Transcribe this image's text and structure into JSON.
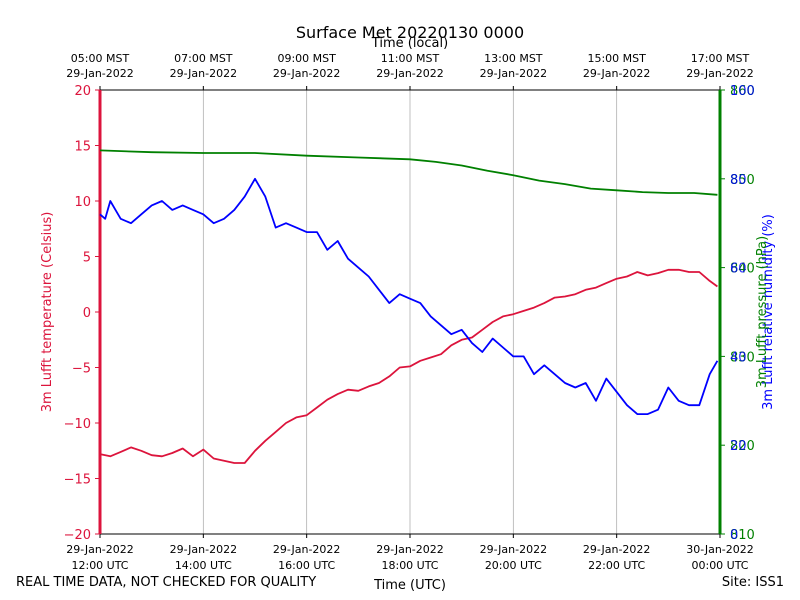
{
  "chart_data": {
    "type": "line",
    "title": "Surface Met 20220130 0000",
    "top_axis_label": "Time (local)",
    "xlabel": "Time (UTC)",
    "top_ticks": [
      {
        "line1": "05:00 MST",
        "line2": "29-Jan-2022"
      },
      {
        "line1": "07:00 MST",
        "line2": "29-Jan-2022"
      },
      {
        "line1": "09:00 MST",
        "line2": "29-Jan-2022"
      },
      {
        "line1": "11:00 MST",
        "line2": "29-Jan-2022"
      },
      {
        "line1": "13:00 MST",
        "line2": "29-Jan-2022"
      },
      {
        "line1": "15:00 MST",
        "line2": "29-Jan-2022"
      },
      {
        "line1": "17:00 MST",
        "line2": "29-Jan-2022"
      }
    ],
    "bottom_ticks": [
      {
        "line1": "29-Jan-2022",
        "line2": "12:00 UTC"
      },
      {
        "line1": "29-Jan-2022",
        "line2": "14:00 UTC"
      },
      {
        "line1": "29-Jan-2022",
        "line2": "16:00 UTC"
      },
      {
        "line1": "29-Jan-2022",
        "line2": "18:00 UTC"
      },
      {
        "line1": "29-Jan-2022",
        "line2": "20:00 UTC"
      },
      {
        "line1": "29-Jan-2022",
        "line2": "22:00 UTC"
      },
      {
        "line1": "30-Jan-2022",
        "line2": "00:00 UTC"
      }
    ],
    "xlim_hours": [
      12,
      24
    ],
    "tick_hours": [
      12,
      14,
      16,
      18,
      20,
      22,
      24
    ],
    "grid": true,
    "left_axis": {
      "label": "3m Lufft temperature (Celsius)",
      "color": "#dc143c",
      "ylim": [
        -20,
        20
      ],
      "ticks": [
        "−20",
        "−15",
        "−10",
        "−5",
        "0",
        "5",
        "10",
        "15",
        "20"
      ]
    },
    "right_axis_pressure": {
      "label": "3m Lufft pressure (hPa)",
      "color": "#008000",
      "ylim": [
        810,
        860
      ],
      "ticks": [
        "810",
        "820",
        "830",
        "840",
        "850",
        "860"
      ]
    },
    "right_axis_humidity": {
      "label": "3m Lufft relative humidity (%)",
      "color": "#0000ff",
      "ylim": [
        0,
        100
      ],
      "ticks": [
        "0",
        "20",
        "40",
        "60",
        "80",
        "100"
      ]
    },
    "series": [
      {
        "name": "3m Lufft temperature",
        "axis": "left",
        "color": "#dc143c",
        "x": [
          12.0,
          12.2,
          12.4,
          12.6,
          12.8,
          13.0,
          13.2,
          13.4,
          13.6,
          13.8,
          14.0,
          14.2,
          14.4,
          14.6,
          14.8,
          15.0,
          15.2,
          15.4,
          15.6,
          15.8,
          16.0,
          16.2,
          16.4,
          16.6,
          16.8,
          17.0,
          17.2,
          17.4,
          17.6,
          17.8,
          18.0,
          18.2,
          18.4,
          18.6,
          18.8,
          19.0,
          19.2,
          19.4,
          19.6,
          19.8,
          20.0,
          20.2,
          20.4,
          20.6,
          20.8,
          21.0,
          21.2,
          21.4,
          21.6,
          21.8,
          22.0,
          22.2,
          22.4,
          22.6,
          22.8,
          23.0,
          23.2,
          23.4,
          23.6,
          23.8,
          23.95
        ],
        "values": [
          -12.8,
          -13.0,
          -12.6,
          -12.2,
          -12.5,
          -12.9,
          -13.0,
          -12.7,
          -12.3,
          -13.0,
          -12.4,
          -13.2,
          -13.4,
          -13.6,
          -13.6,
          -12.5,
          -11.6,
          -10.8,
          -10.0,
          -9.5,
          -9.3,
          -8.6,
          -7.9,
          -7.4,
          -7.0,
          -7.1,
          -6.7,
          -6.4,
          -5.8,
          -5.0,
          -4.9,
          -4.4,
          -4.1,
          -3.8,
          -3.0,
          -2.5,
          -2.3,
          -1.6,
          -0.9,
          -0.4,
          -0.2,
          0.1,
          0.4,
          0.8,
          1.3,
          1.4,
          1.6,
          2.0,
          2.2,
          2.6,
          3.0,
          3.2,
          3.6,
          3.3,
          3.5,
          3.8,
          3.8,
          3.6,
          3.6,
          2.8,
          2.3
        ]
      },
      {
        "name": "3m Lufft relative humidity",
        "axis": "right_humidity",
        "color": "#0000ff",
        "x": [
          12.0,
          12.1,
          12.2,
          12.3,
          12.4,
          12.6,
          12.8,
          13.0,
          13.2,
          13.4,
          13.6,
          13.8,
          14.0,
          14.2,
          14.4,
          14.6,
          14.8,
          15.0,
          15.2,
          15.4,
          15.6,
          15.8,
          16.0,
          16.2,
          16.4,
          16.6,
          16.8,
          17.0,
          17.2,
          17.4,
          17.6,
          17.8,
          18.0,
          18.2,
          18.4,
          18.6,
          18.8,
          19.0,
          19.2,
          19.4,
          19.6,
          19.8,
          20.0,
          20.2,
          20.4,
          20.6,
          20.8,
          21.0,
          21.2,
          21.4,
          21.6,
          21.8,
          22.0,
          22.2,
          22.4,
          22.6,
          22.8,
          23.0,
          23.2,
          23.4,
          23.6,
          23.8,
          23.95
        ],
        "values": [
          72,
          71,
          75,
          73,
          71,
          70,
          72,
          74,
          75,
          73,
          74,
          73,
          72,
          70,
          71,
          73,
          76,
          80,
          76,
          69,
          70,
          69,
          68,
          68,
          64,
          66,
          62,
          60,
          58,
          55,
          52,
          54,
          53,
          52,
          49,
          47,
          45,
          46,
          43,
          41,
          44,
          42,
          40,
          40,
          36,
          38,
          36,
          34,
          33,
          34,
          30,
          35,
          32,
          29,
          27,
          27,
          28,
          33,
          30,
          29,
          29,
          36,
          39
        ]
      },
      {
        "name": "3m Lufft pressure",
        "axis": "right_pressure",
        "color": "#008000",
        "x": [
          12.0,
          13.0,
          14.0,
          15.0,
          16.0,
          17.0,
          18.0,
          18.5,
          19.0,
          19.5,
          20.0,
          20.5,
          21.0,
          21.5,
          22.0,
          22.5,
          23.0,
          23.5,
          23.95
        ],
        "values": [
          853.2,
          853.0,
          852.9,
          852.9,
          852.6,
          852.4,
          852.2,
          851.9,
          851.5,
          850.9,
          850.4,
          849.8,
          849.4,
          848.9,
          848.7,
          848.5,
          848.4,
          848.4,
          848.2
        ]
      }
    ]
  },
  "footer": {
    "left": "REAL TIME DATA, NOT CHECKED FOR QUALITY",
    "right": "Site: ISS1"
  }
}
